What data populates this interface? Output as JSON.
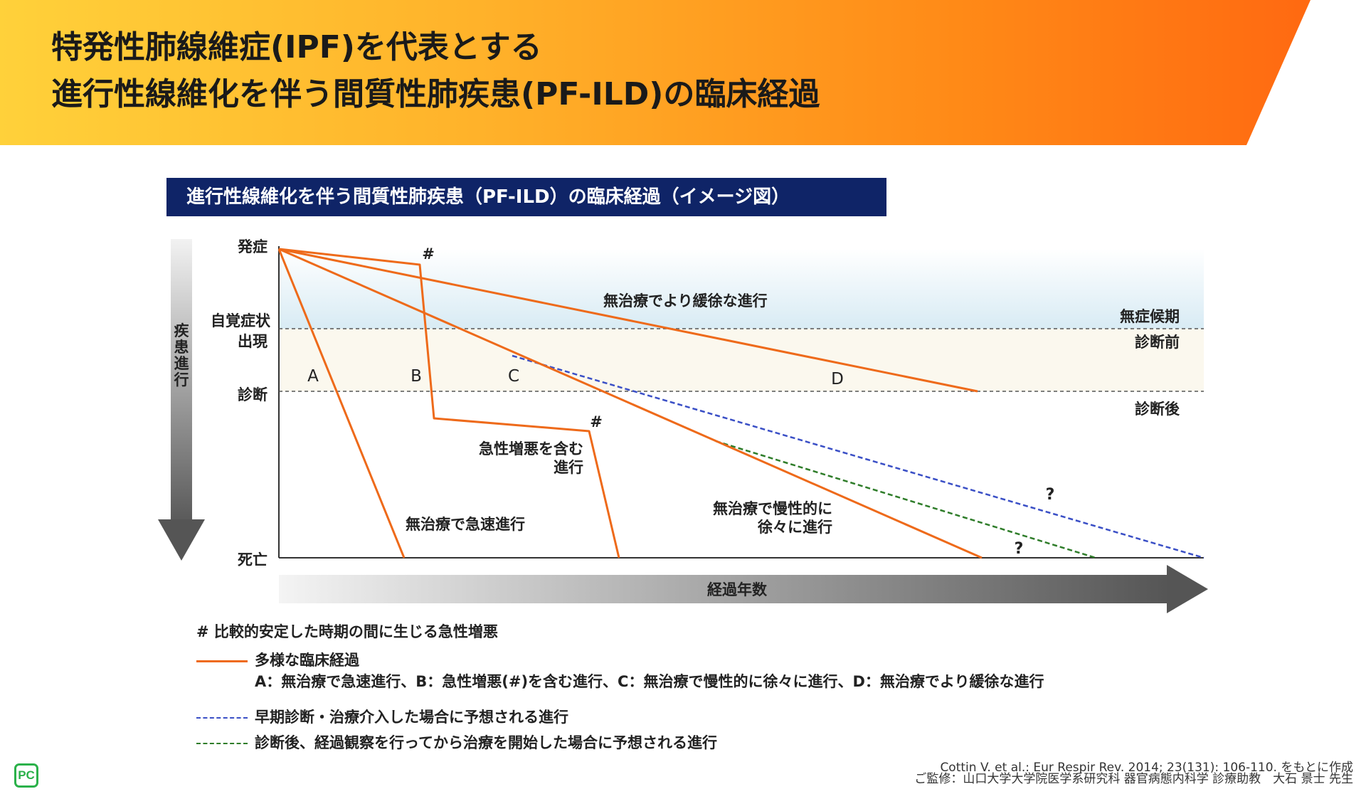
{
  "header": {
    "title_line1": "特発性肺線維症(IPF)を代表とする",
    "title_line2": "進行性線維化を伴う間質性肺疾患(PF-ILD)の臨床経過"
  },
  "diagram": {
    "banner": "進行性線維化を伴う間質性肺疾患（PF-ILD）の臨床経過（イメージ図）",
    "y_axis_title": "疾患進行",
    "x_axis_title": "経過年数",
    "y_levels": {
      "onset": "発症",
      "symptom_line1": "自覚症状",
      "symptom_line2": "出現",
      "diagnosis": "診断",
      "death": "死亡"
    },
    "zones": {
      "asymptomatic": "無症候期",
      "pre_diagnosis": "診断前",
      "post_diagnosis": "診断後"
    },
    "course_letters": {
      "a": "A",
      "b": "B",
      "c": "C",
      "d": "D"
    },
    "annotations": {
      "d_desc": "無治療でより緩徐な進行",
      "b_desc_line1": "急性増悪を含む",
      "b_desc_line2": "進行",
      "a_desc": "無治療で急速進行",
      "c_desc_line1": "無治療で慢性的に",
      "c_desc_line2": "徐々に進行",
      "hash": "#",
      "question": "?"
    }
  },
  "legend": {
    "hash_note": "# 比較的安定した時期の間に生じる急性増悪",
    "orange_label": "多様な臨床経過",
    "orange_detail": "A：無治療で急速進行、B：急性増悪(#)を含む進行、C：無治療で慢性的に徐々に進行、D：無治療でより緩徐な進行",
    "blue_label": "早期診断・治療介入した場合に予想される進行",
    "green_label": "診断後、経過観察を行ってから治療を開始した場合に予想される進行"
  },
  "colors": {
    "orange": "#ee6a1a",
    "blue": "#3a4fc6",
    "green": "#2f7d2a",
    "navy": "#0f2467"
  },
  "source": {
    "line1": "Cottin V. et al.: Eur Respir Rev. 2014; 23(131): 106-110. をもとに作成",
    "line2": "ご監修：山口大学大学院医学系研究科 器官病態内科学 診療助教　大石 景士 先生"
  },
  "logo": {
    "text": "PC"
  }
}
